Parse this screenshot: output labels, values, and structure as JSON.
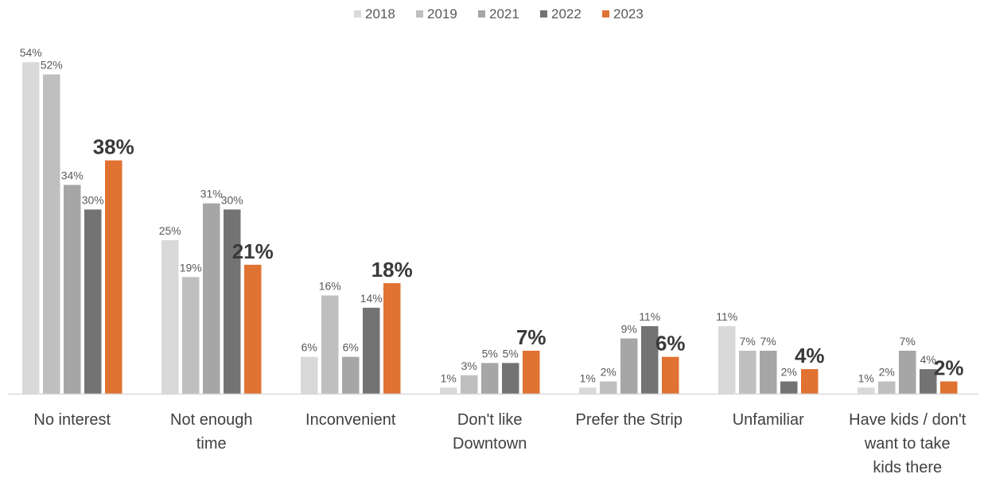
{
  "chart_data": {
    "type": "bar",
    "title": "",
    "xlabel": "",
    "ylabel": "",
    "ylim": [
      0,
      60
    ],
    "grid": false,
    "legend_position": "top-center",
    "categories": [
      "No interest",
      "Not enough time",
      "Inconvenient",
      "Don't like Downtown",
      "Prefer the Strip",
      "Unfamiliar",
      "Have kids / don't want to take kids there"
    ],
    "category_label_lines": [
      [
        "No interest"
      ],
      [
        "Not enough",
        "time"
      ],
      [
        "Inconvenient"
      ],
      [
        "Don't like",
        "Downtown"
      ],
      [
        "Prefer the Strip"
      ],
      [
        "Unfamiliar"
      ],
      [
        "Have kids / don't",
        "want to take",
        "kids there"
      ]
    ],
    "value_format": "{v}%",
    "series": [
      {
        "name": "2018",
        "color": "#d9d9d9",
        "values": [
          54,
          25,
          6,
          1,
          1,
          11,
          1
        ]
      },
      {
        "name": "2019",
        "color": "#bfbfbf",
        "values": [
          52,
          19,
          16,
          3,
          2,
          7,
          2
        ]
      },
      {
        "name": "2021",
        "color": "#a6a6a6",
        "values": [
          34,
          31,
          6,
          5,
          9,
          7,
          7
        ]
      },
      {
        "name": "2022",
        "color": "#737373",
        "values": [
          30,
          30,
          14,
          5,
          11,
          2,
          4
        ]
      },
      {
        "name": "2023",
        "color": "#e07232",
        "values": [
          38,
          21,
          18,
          7,
          6,
          4,
          2
        ],
        "emphasized": true
      }
    ],
    "axis_color": "#d9d9d9"
  }
}
